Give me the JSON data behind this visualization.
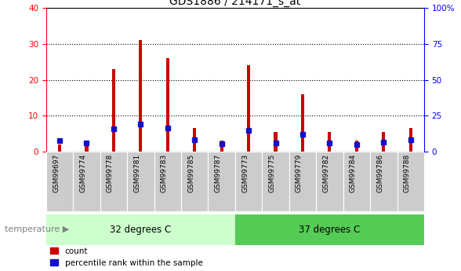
{
  "title": "GDS1886 / 214171_s_at",
  "categories": [
    "GSM99697",
    "GSM99774",
    "GSM99778",
    "GSM99781",
    "GSM99783",
    "GSM99785",
    "GSM99787",
    "GSM99773",
    "GSM99775",
    "GSM99779",
    "GSM99782",
    "GSM99784",
    "GSM99786",
    "GSM99788"
  ],
  "count_values": [
    2.0,
    2.2,
    23.0,
    31.0,
    26.0,
    6.5,
    3.2,
    24.0,
    5.5,
    16.0,
    5.5,
    3.0,
    5.5,
    6.5
  ],
  "percentile_values": [
    8.0,
    6.0,
    16.0,
    19.0,
    16.5,
    8.5,
    5.5,
    15.0,
    6.0,
    12.0,
    6.0,
    5.0,
    6.5,
    8.5
  ],
  "count_color": "#cc0000",
  "percentile_color": "#1111cc",
  "ylim_left": [
    0,
    40
  ],
  "ylim_right": [
    0,
    100
  ],
  "yticks_left": [
    0,
    10,
    20,
    30,
    40
  ],
  "yticks_right": [
    0,
    25,
    50,
    75,
    100
  ],
  "ytick_labels_right": [
    "0",
    "25",
    "50",
    "75",
    "100%"
  ],
  "group1_label": "32 degrees C",
  "group2_label": "37 degrees C",
  "group1_count": 7,
  "group2_count": 7,
  "temperature_label": "temperature",
  "legend_count": "count",
  "legend_percentile": "percentile rank within the sample",
  "bar_width": 0.12,
  "group1_bg": "#ccffcc",
  "group2_bg": "#55cc55",
  "tick_bg": "#cccccc",
  "grid_color": "#000000",
  "title_fontsize": 10,
  "axis_fontsize": 7.5,
  "label_fontsize": 8.5
}
